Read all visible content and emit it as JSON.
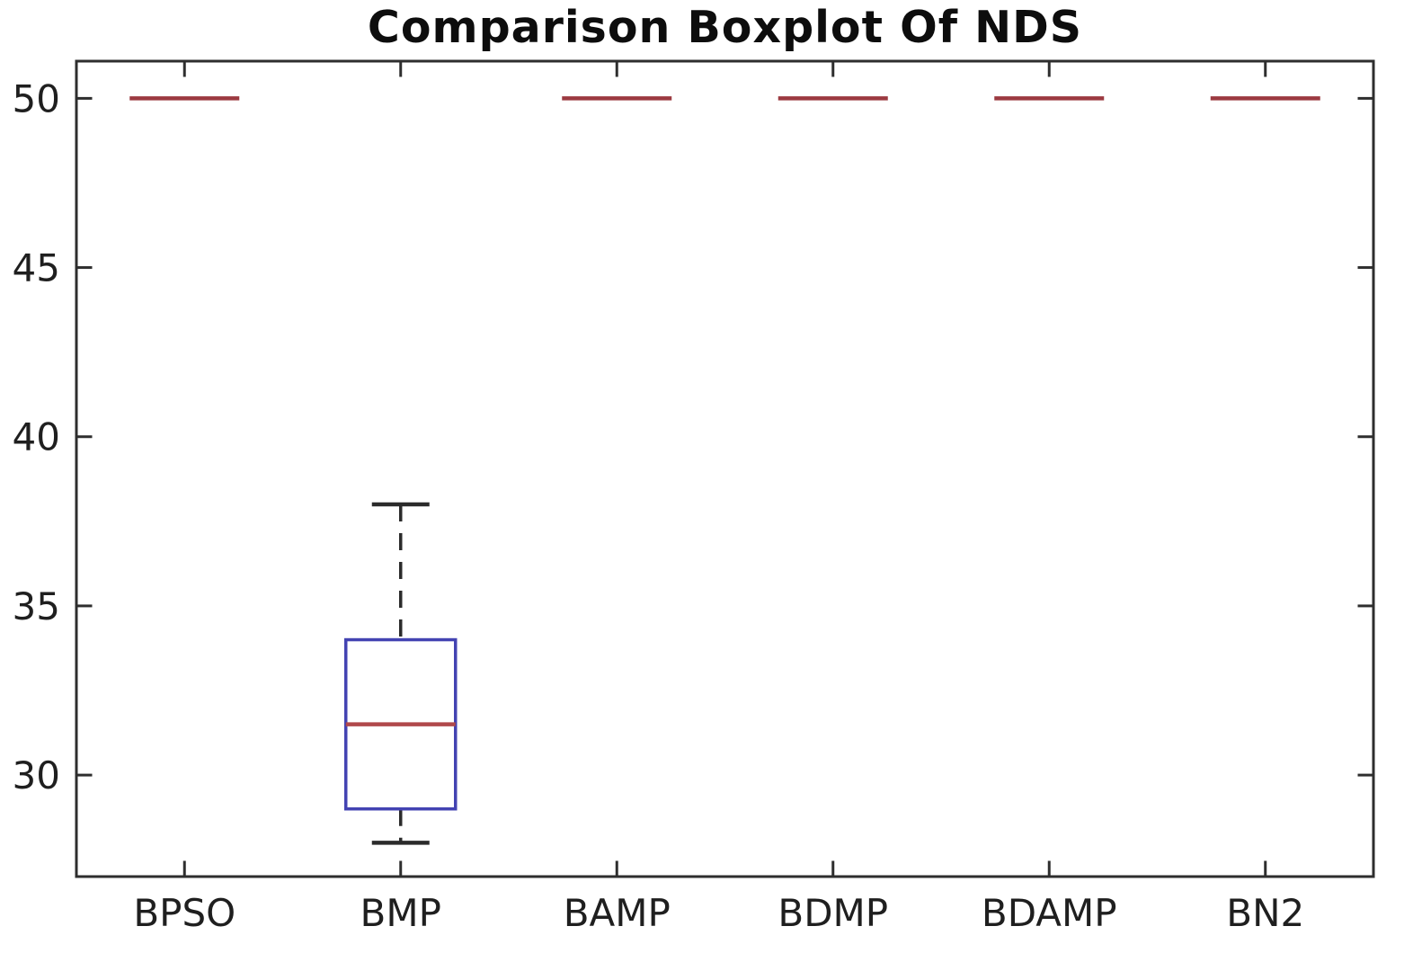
{
  "title": "Comparison Boxplot Of NDS",
  "chart_data": {
    "type": "boxplot",
    "title": "Comparison Boxplot Of NDS",
    "categories": [
      "BPSO",
      "BMP",
      "BAMP",
      "BDMP",
      "BDAMP",
      "BN2"
    ],
    "series": [
      {
        "name": "BPSO",
        "min": 50,
        "q1": 50,
        "median": 50,
        "q3": 50,
        "max": 50
      },
      {
        "name": "BMP",
        "min": 28,
        "q1": 29,
        "median": 31.5,
        "q3": 34,
        "max": 38
      },
      {
        "name": "BAMP",
        "min": 50,
        "q1": 50,
        "median": 50,
        "q3": 50,
        "max": 50
      },
      {
        "name": "BDMP",
        "min": 50,
        "q1": 50,
        "median": 50,
        "q3": 50,
        "max": 50
      },
      {
        "name": "BDAMP",
        "min": 50,
        "q1": 50,
        "median": 50,
        "q3": 50,
        "max": 50
      },
      {
        "name": "BN2",
        "min": 50,
        "q1": 50,
        "median": 50,
        "q3": 50,
        "max": 50
      }
    ],
    "yticks": [
      30,
      35,
      40,
      45,
      50
    ],
    "ylim": [
      27.0,
      51.1
    ],
    "xlabel": "",
    "ylabel": "",
    "grid": false,
    "legend": null,
    "colors": {
      "box_edge": "#4343b2",
      "median_line": "#b0484b",
      "flat_line": "#9c3a41",
      "whisker": "#2b2b2b",
      "axis": "#2e2e2e",
      "tick_label": "#1f1f1f",
      "background": "#ffffff"
    }
  }
}
